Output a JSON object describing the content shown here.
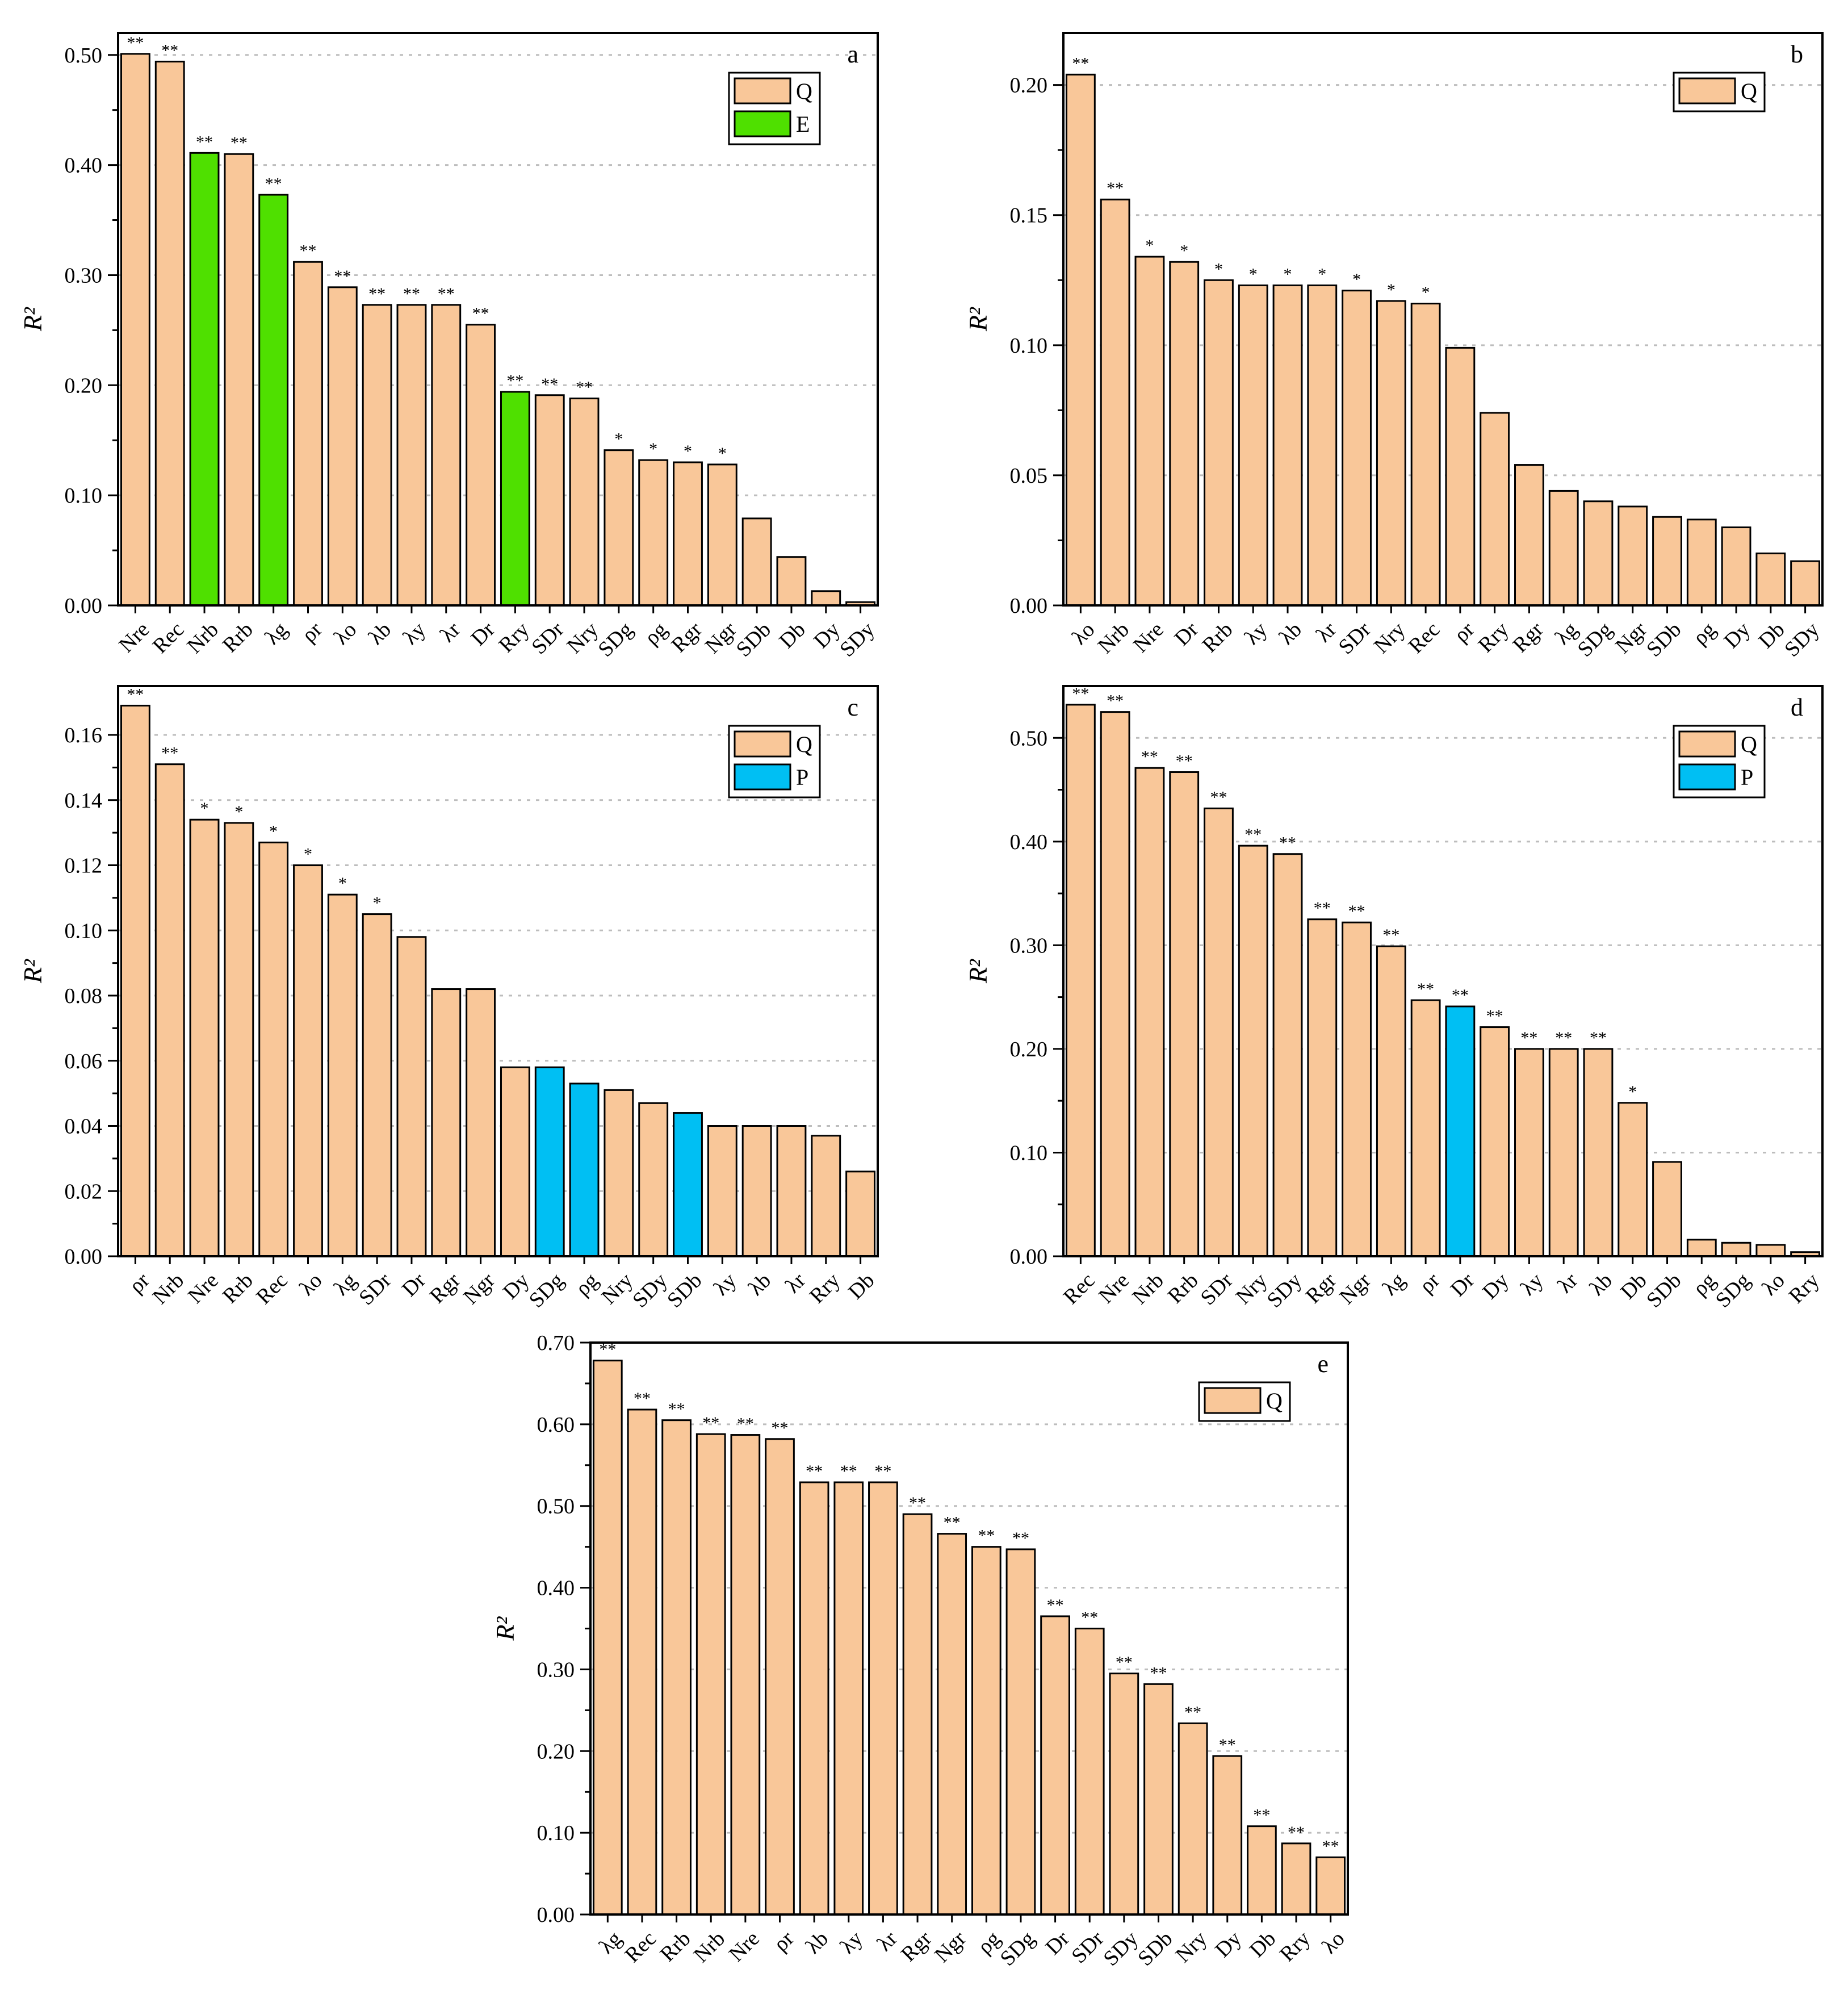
{
  "colors": {
    "Q": "#F9C799",
    "E": "#4FE000",
    "P": "#00BFF3",
    "frame": "#000000",
    "grid": "#BDBDBD"
  },
  "chart_data": [
    {
      "id": "a",
      "type": "bar",
      "panel_label": "a",
      "ylabel": "R²",
      "ylim": [
        0,
        0.52
      ],
      "yticks": [
        "0.00",
        "0.10",
        "0.20",
        "0.30",
        "0.40",
        "0.50"
      ],
      "ytick_values": [
        0,
        0.1,
        0.2,
        0.3,
        0.4,
        0.5
      ],
      "grid": true,
      "legend": [
        {
          "key": "Q",
          "label": "Q"
        },
        {
          "key": "E",
          "label": "E"
        }
      ],
      "legend_position": "top-right",
      "categories": [
        "Nre",
        "Rec",
        "Nrb",
        "Rrb",
        "λg",
        "ρr",
        "λo",
        "λb",
        "λy",
        "λr",
        "Dr",
        "Rry",
        "SDr",
        "Nry",
        "SDg",
        "ρg",
        "Rgr",
        "Ngr",
        "SDb",
        "Db",
        "Dy",
        "SDy"
      ],
      "values": [
        0.501,
        0.494,
        0.411,
        0.41,
        0.373,
        0.312,
        0.289,
        0.273,
        0.273,
        0.273,
        0.255,
        0.194,
        0.191,
        0.188,
        0.141,
        0.132,
        0.13,
        0.128,
        0.079,
        0.044,
        0.013,
        0.003
      ],
      "groups": [
        "Q",
        "Q",
        "E",
        "Q",
        "E",
        "Q",
        "Q",
        "Q",
        "Q",
        "Q",
        "Q",
        "E",
        "Q",
        "Q",
        "Q",
        "Q",
        "Q",
        "Q",
        "Q",
        "Q",
        "Q",
        "Q"
      ],
      "significance": [
        "**",
        "**",
        "**",
        "**",
        "**",
        "**",
        "**",
        "**",
        "**",
        "**",
        "**",
        "**",
        "**",
        "**",
        "*",
        "*",
        "*",
        "*",
        "",
        "",
        "",
        ""
      ]
    },
    {
      "id": "b",
      "type": "bar",
      "panel_label": "b",
      "ylabel": "R²",
      "ylim": [
        0,
        0.22
      ],
      "yticks": [
        "0.00",
        "0.05",
        "0.10",
        "0.15",
        "0.20"
      ],
      "ytick_values": [
        0,
        0.05,
        0.1,
        0.15,
        0.2
      ],
      "grid": true,
      "legend": [
        {
          "key": "Q",
          "label": "Q"
        }
      ],
      "legend_position": "top-right",
      "categories": [
        "λo",
        "Nrb",
        "Nre",
        "Dr",
        "Rrb",
        "λy",
        "λb",
        "λr",
        "SDr",
        "Nry",
        "Rec",
        "ρr",
        "Rry",
        "Rgr",
        "λg",
        "SDg",
        "Ngr",
        "SDb",
        "ρg",
        "Dy",
        "Db",
        "SDy"
      ],
      "values": [
        0.204,
        0.156,
        0.134,
        0.132,
        0.125,
        0.123,
        0.123,
        0.123,
        0.121,
        0.117,
        0.116,
        0.099,
        0.074,
        0.054,
        0.044,
        0.04,
        0.038,
        0.034,
        0.033,
        0.03,
        0.02,
        0.017
      ],
      "groups": [
        "Q",
        "Q",
        "Q",
        "Q",
        "Q",
        "Q",
        "Q",
        "Q",
        "Q",
        "Q",
        "Q",
        "Q",
        "Q",
        "Q",
        "Q",
        "Q",
        "Q",
        "Q",
        "Q",
        "Q",
        "Q",
        "Q"
      ],
      "significance": [
        "**",
        "**",
        "*",
        "*",
        "*",
        "*",
        "*",
        "*",
        "*",
        "*",
        "*",
        "",
        "",
        "",
        "",
        "",
        "",
        "",
        "",
        "",
        "",
        ""
      ]
    },
    {
      "id": "c",
      "type": "bar",
      "panel_label": "c",
      "ylabel": "R²",
      "ylim": [
        0,
        0.175
      ],
      "yticks": [
        "0.00",
        "0.02",
        "0.04",
        "0.06",
        "0.08",
        "0.10",
        "0.12",
        "0.14",
        "0.16"
      ],
      "ytick_values": [
        0,
        0.02,
        0.04,
        0.06,
        0.08,
        0.1,
        0.12,
        0.14,
        0.16
      ],
      "grid": true,
      "legend": [
        {
          "key": "Q",
          "label": "Q"
        },
        {
          "key": "P",
          "label": "P"
        }
      ],
      "legend_position": "top-right",
      "categories": [
        "ρr",
        "Nrb",
        "Nre",
        "Rrb",
        "Rec",
        "λo",
        "λg",
        "SDr",
        "Dr",
        "Rgr",
        "Ngr",
        "Dy",
        "SDg",
        "ρg",
        "Nry",
        "SDy",
        "SDb",
        "λy",
        "λb",
        "λr",
        "Rry",
        "Db"
      ],
      "values": [
        0.169,
        0.151,
        0.134,
        0.133,
        0.127,
        0.12,
        0.111,
        0.105,
        0.098,
        0.082,
        0.082,
        0.058,
        0.058,
        0.053,
        0.051,
        0.047,
        0.044,
        0.04,
        0.04,
        0.04,
        0.037,
        0.026
      ],
      "groups": [
        "Q",
        "Q",
        "Q",
        "Q",
        "Q",
        "Q",
        "Q",
        "Q",
        "Q",
        "Q",
        "Q",
        "Q",
        "P",
        "P",
        "Q",
        "Q",
        "P",
        "Q",
        "Q",
        "Q",
        "Q",
        "Q"
      ],
      "significance": [
        "**",
        "**",
        "*",
        "*",
        "*",
        "*",
        "*",
        "*",
        "",
        "",
        "",
        "",
        "",
        "",
        "",
        "",
        "",
        "",
        "",
        "",
        "",
        ""
      ]
    },
    {
      "id": "d",
      "type": "bar",
      "panel_label": "d",
      "ylabel": "R²",
      "ylim": [
        0,
        0.55
      ],
      "yticks": [
        "0.00",
        "0.10",
        "0.20",
        "0.30",
        "0.40",
        "0.50"
      ],
      "ytick_values": [
        0,
        0.1,
        0.2,
        0.3,
        0.4,
        0.5
      ],
      "grid": true,
      "legend": [
        {
          "key": "Q",
          "label": "Q"
        },
        {
          "key": "P",
          "label": "P"
        }
      ],
      "legend_position": "top-right",
      "categories": [
        "Rec",
        "Nre",
        "Nrb",
        "Rrb",
        "SDr",
        "Nry",
        "SDy",
        "Rgr",
        "Ngr",
        "λg",
        "ρr",
        "Dr",
        "Dy",
        "λy",
        "λr",
        "λb",
        "Db",
        "SDb",
        "ρg",
        "SDg",
        "λo",
        "Rry"
      ],
      "values": [
        0.532,
        0.525,
        0.471,
        0.467,
        0.432,
        0.396,
        0.388,
        0.325,
        0.322,
        0.299,
        0.247,
        0.241,
        0.221,
        0.2,
        0.2,
        0.2,
        0.148,
        0.091,
        0.016,
        0.013,
        0.011,
        0.004
      ],
      "groups": [
        "Q",
        "Q",
        "Q",
        "Q",
        "Q",
        "Q",
        "Q",
        "Q",
        "Q",
        "Q",
        "Q",
        "P",
        "Q",
        "Q",
        "Q",
        "Q",
        "Q",
        "Q",
        "Q",
        "Q",
        "Q",
        "Q"
      ],
      "significance": [
        "**",
        "**",
        "**",
        "**",
        "**",
        "**",
        "**",
        "**",
        "**",
        "**",
        "**",
        "**",
        "**",
        "**",
        "**",
        "**",
        "*",
        "",
        "",
        "",
        "",
        ""
      ]
    },
    {
      "id": "e",
      "type": "bar",
      "panel_label": "e",
      "ylabel": "R²",
      "ylim": [
        0,
        0.7
      ],
      "yticks": [
        "0.00",
        "0.10",
        "0.20",
        "0.30",
        "0.40",
        "0.50",
        "0.60",
        "0.70"
      ],
      "ytick_values": [
        0,
        0.1,
        0.2,
        0.3,
        0.4,
        0.5,
        0.6,
        0.7
      ],
      "grid": true,
      "legend": [
        {
          "key": "Q",
          "label": "Q"
        }
      ],
      "legend_position": "top-right",
      "categories": [
        "λg",
        "Rec",
        "Rrb",
        "Nrb",
        "Nre",
        "ρr",
        "λb",
        "λy",
        "λr",
        "Rgr",
        "Ngr",
        "ρg",
        "SDg",
        "Dr",
        "SDr",
        "SDy",
        "SDb",
        "Nry",
        "Dy",
        "Db",
        "Rry",
        "λo"
      ],
      "values": [
        0.678,
        0.618,
        0.605,
        0.588,
        0.587,
        0.582,
        0.529,
        0.529,
        0.529,
        0.49,
        0.466,
        0.45,
        0.447,
        0.365,
        0.35,
        0.295,
        0.282,
        0.234,
        0.194,
        0.108,
        0.087,
        0.07
      ],
      "groups": [
        "Q",
        "Q",
        "Q",
        "Q",
        "Q",
        "Q",
        "Q",
        "Q",
        "Q",
        "Q",
        "Q",
        "Q",
        "Q",
        "Q",
        "Q",
        "Q",
        "Q",
        "Q",
        "Q",
        "Q",
        "Q",
        "Q"
      ],
      "significance": [
        "**",
        "**",
        "**",
        "**",
        "**",
        "**",
        "**",
        "**",
        "**",
        "**",
        "**",
        "**",
        "**",
        "**",
        "**",
        "**",
        "**",
        "**",
        "**",
        "**",
        "**",
        "**"
      ]
    }
  ]
}
